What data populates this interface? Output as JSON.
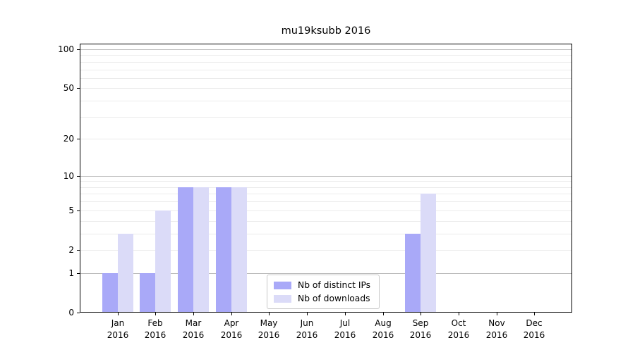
{
  "title": "mu19ksubb 2016",
  "chart_data": {
    "type": "bar",
    "title": "mu19ksubb 2016",
    "categories": [
      "Jan",
      "Feb",
      "Mar",
      "Apr",
      "May",
      "Jun",
      "Jul",
      "Aug",
      "Sep",
      "Oct",
      "Nov",
      "Dec"
    ],
    "year_label": "2016",
    "series": [
      {
        "name": "Nb of distinct IPs",
        "color": "#a9a9f8",
        "values": [
          1,
          1,
          8,
          8,
          0,
          0,
          0,
          0,
          3,
          0,
          0,
          0
        ]
      },
      {
        "name": "Nb of downloads",
        "color": "#dbdbf8",
        "values": [
          3,
          5,
          8,
          8,
          0,
          0,
          0,
          0,
          7,
          0,
          0,
          0
        ]
      }
    ],
    "y_axis": {
      "scale": "log10(1+v)",
      "tick_values": [
        0,
        1,
        2,
        5,
        10,
        20,
        50,
        100
      ],
      "decade_gridlines": [
        1,
        10,
        100
      ],
      "minor_gridlines": [
        2,
        3,
        4,
        5,
        6,
        7,
        8,
        9,
        20,
        30,
        40,
        50,
        60,
        70,
        80,
        90
      ],
      "ylim": [
        0,
        110
      ]
    },
    "legend_position": "lower center",
    "grid": true
  }
}
